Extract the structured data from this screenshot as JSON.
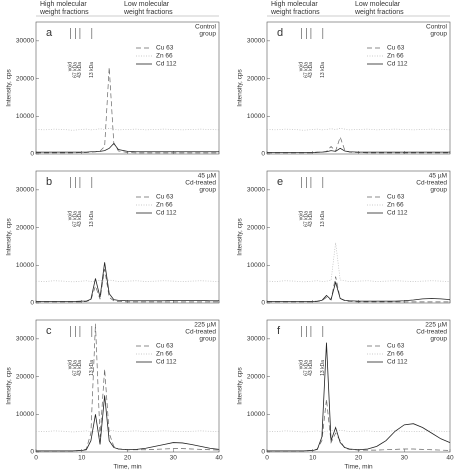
{
  "header": {
    "high": [
      "High molecular",
      "weight fractions"
    ],
    "low": [
      "Low molecular",
      "weight fractions"
    ]
  },
  "chart_data": [
    {
      "type": "line",
      "panel": "a",
      "annotation": [
        "Control",
        "group"
      ],
      "ylabel": "Intensity, cps",
      "x": [
        0,
        2,
        4,
        6,
        8,
        10,
        11,
        12,
        13,
        14,
        15,
        16,
        17,
        18,
        20,
        22,
        24,
        26,
        28,
        30,
        32,
        34,
        36,
        38,
        40
      ],
      "xlim": [
        0,
        40
      ],
      "ylim": [
        0,
        35000
      ],
      "xticks": [
        0,
        10,
        20,
        30,
        40
      ],
      "yticks": [
        0,
        10000,
        20000,
        30000
      ],
      "markers": [
        {
          "label": "void",
          "x": 7.5
        },
        {
          "label": "67 kDa",
          "x": 8.6
        },
        {
          "label": "43 kDa",
          "x": 9.6
        },
        {
          "label": "13 kDa",
          "x": 12.2
        }
      ],
      "series": [
        {
          "name": "Cu 63",
          "color": "#666666",
          "dash": "5,3",
          "values": [
            300,
            300,
            300,
            300,
            300,
            400,
            400,
            500,
            600,
            800,
            2000,
            23000,
            3000,
            800,
            400,
            300,
            300,
            300,
            300,
            300,
            300,
            300,
            300,
            300,
            300
          ]
        },
        {
          "name": "Zn 66",
          "color": "#bbbbbb",
          "dash": "1,1.5",
          "values": [
            6500,
            6400,
            6600,
            6500,
            6300,
            6500,
            6600,
            6400,
            6500,
            6700,
            6500,
            6800,
            6600,
            6400,
            6500,
            6600,
            6400,
            6500,
            6600,
            6500,
            6400,
            6500,
            6600,
            6500,
            6400
          ]
        },
        {
          "name": "Cd 112",
          "color": "#222222",
          "dash": "none",
          "values": [
            500,
            500,
            500,
            500,
            500,
            500,
            500,
            600,
            600,
            700,
            900,
            1500,
            2800,
            1200,
            700,
            600,
            600,
            600,
            600,
            600,
            600,
            600,
            600,
            600,
            600
          ]
        }
      ]
    },
    {
      "type": "line",
      "panel": "b",
      "annotation": [
        "45 µM",
        "Cd-treated",
        "group"
      ],
      "ylabel": "Intensity, cps",
      "x": [
        0,
        2,
        4,
        6,
        8,
        10,
        11,
        12,
        13,
        14,
        15,
        16,
        17,
        18,
        20,
        22,
        24,
        26,
        28,
        30,
        32,
        34,
        36,
        38,
        40
      ],
      "xlim": [
        0,
        40
      ],
      "ylim": [
        0,
        35000
      ],
      "xticks": [
        0,
        10,
        20,
        30,
        40
      ],
      "yticks": [
        0,
        10000,
        20000,
        30000
      ],
      "markers": [
        {
          "label": "void",
          "x": 7.5
        },
        {
          "label": "67 kDa",
          "x": 8.6
        },
        {
          "label": "43 kDa",
          "x": 9.6
        },
        {
          "label": "13 kDa",
          "x": 12.2
        }
      ],
      "series": [
        {
          "name": "Cu 63",
          "color": "#666666",
          "dash": "5,3",
          "values": [
            300,
            300,
            300,
            300,
            300,
            300,
            400,
            800,
            4500,
            1000,
            9000,
            1500,
            600,
            400,
            300,
            300,
            300,
            300,
            300,
            300,
            300,
            300,
            300,
            300,
            300
          ]
        },
        {
          "name": "Zn 66",
          "color": "#bbbbbb",
          "dash": "1,1.5",
          "values": [
            5800,
            5700,
            5900,
            5800,
            5600,
            5800,
            5900,
            5700,
            5800,
            6000,
            5800,
            6100,
            5900,
            5700,
            5800,
            5900,
            5700,
            5800,
            5900,
            5800,
            5700,
            5800,
            5900,
            5800,
            5700
          ]
        },
        {
          "name": "Cd 112",
          "color": "#222222",
          "dash": "none",
          "values": [
            400,
            400,
            400,
            400,
            400,
            500,
            500,
            1000,
            6500,
            1500,
            10800,
            2500,
            900,
            700,
            600,
            600,
            600,
            600,
            600,
            700,
            700,
            700,
            700,
            600,
            600
          ]
        }
      ]
    },
    {
      "type": "line",
      "panel": "c",
      "annotation": [
        "225 µM",
        "Cd-treated",
        "group"
      ],
      "ylabel": "Intensity, cps",
      "xlabel": "Time, min",
      "x": [
        0,
        2,
        4,
        6,
        8,
        10,
        11,
        12,
        13,
        14,
        15,
        16,
        17,
        18,
        20,
        22,
        24,
        26,
        28,
        30,
        32,
        34,
        36,
        38,
        40
      ],
      "xlim": [
        0,
        40
      ],
      "ylim": [
        0,
        35000
      ],
      "xticks": [
        0,
        10,
        20,
        30,
        40
      ],
      "yticks": [
        0,
        10000,
        20000,
        30000
      ],
      "markers": [
        {
          "label": "void",
          "x": 7.5
        },
        {
          "label": "67 kDa",
          "x": 8.6
        },
        {
          "label": "43 kDa",
          "x": 9.6
        },
        {
          "label": "13 kDa",
          "x": 12.2
        }
      ],
      "series": [
        {
          "name": "Cu 63",
          "color": "#666666",
          "dash": "5,3",
          "values": [
            300,
            300,
            300,
            300,
            300,
            400,
            800,
            5000,
            34000,
            4000,
            22000,
            5000,
            1500,
            800,
            600,
            600,
            600,
            700,
            800,
            900,
            900,
            800,
            700,
            600,
            500
          ]
        },
        {
          "name": "Zn 66",
          "color": "#bbbbbb",
          "dash": "1,1.5",
          "values": [
            5500,
            5400,
            5600,
            5500,
            5300,
            5500,
            5600,
            5400,
            5500,
            5700,
            5500,
            5800,
            5600,
            5400,
            5500,
            5600,
            5400,
            5500,
            5600,
            5500,
            5400,
            5500,
            5600,
            5500,
            5400
          ]
        },
        {
          "name": "Cd 112",
          "color": "#222222",
          "dash": "none",
          "values": [
            300,
            300,
            300,
            300,
            300,
            400,
            600,
            3000,
            10000,
            2000,
            15000,
            3000,
            1200,
            800,
            600,
            700,
            1000,
            1500,
            2000,
            2500,
            2400,
            2000,
            1500,
            1000,
            700
          ]
        }
      ]
    },
    {
      "type": "line",
      "panel": "d",
      "annotation": [
        "Control",
        "group"
      ],
      "ylabel": "Intensity, cps",
      "x": [
        0,
        2,
        4,
        6,
        8,
        10,
        11,
        12,
        13,
        14,
        15,
        16,
        17,
        18,
        20,
        22,
        24,
        26,
        28,
        30,
        32,
        34,
        36,
        38,
        40
      ],
      "xlim": [
        0,
        40
      ],
      "ylim": [
        0,
        35000
      ],
      "xticks": [
        0,
        10,
        20,
        30,
        40
      ],
      "yticks": [
        0,
        10000,
        20000,
        30000
      ],
      "markers": [
        {
          "label": "void",
          "x": 7.5
        },
        {
          "label": "67 kDa",
          "x": 8.6
        },
        {
          "label": "43 kDa",
          "x": 9.6
        },
        {
          "label": "13 kDa",
          "x": 12.2
        }
      ],
      "series": [
        {
          "name": "Cu 63",
          "color": "#666666",
          "dash": "5,3",
          "values": [
            300,
            300,
            300,
            300,
            300,
            300,
            400,
            500,
            700,
            2000,
            800,
            4500,
            1000,
            500,
            400,
            300,
            300,
            300,
            300,
            300,
            300,
            300,
            300,
            300,
            300
          ]
        },
        {
          "name": "Zn 66",
          "color": "#bbbbbb",
          "dash": "1,1.5",
          "values": [
            6500,
            6400,
            6600,
            6500,
            6300,
            6500,
            6600,
            6400,
            6500,
            6700,
            6500,
            6800,
            6600,
            6400,
            6500,
            6600,
            6400,
            6500,
            6600,
            6500,
            6400,
            6500,
            6600,
            6500,
            6400
          ]
        },
        {
          "name": "Cd 112",
          "color": "#222222",
          "dash": "none",
          "values": [
            400,
            400,
            400,
            400,
            400,
            400,
            500,
            500,
            600,
            900,
            700,
            1500,
            800,
            600,
            500,
            500,
            500,
            500,
            500,
            500,
            500,
            500,
            500,
            500,
            500
          ]
        }
      ]
    },
    {
      "type": "line",
      "panel": "e",
      "annotation": [
        "45 µM",
        "Cd-treated",
        "group"
      ],
      "ylabel": "Intensity, cps",
      "x": [
        0,
        2,
        4,
        6,
        8,
        10,
        11,
        12,
        13,
        14,
        15,
        16,
        17,
        18,
        20,
        22,
        24,
        26,
        28,
        30,
        32,
        34,
        36,
        38,
        40
      ],
      "xlim": [
        0,
        40
      ],
      "ylim": [
        0,
        35000
      ],
      "xticks": [
        0,
        10,
        20,
        30,
        40
      ],
      "yticks": [
        0,
        10000,
        20000,
        30000
      ],
      "markers": [
        {
          "label": "void",
          "x": 7.5
        },
        {
          "label": "67 kDa",
          "x": 8.6
        },
        {
          "label": "43 kDa",
          "x": 9.6
        },
        {
          "label": "13 kDa",
          "x": 12.2
        }
      ],
      "series": [
        {
          "name": "Cu 63",
          "color": "#666666",
          "dash": "5,3",
          "values": [
            300,
            300,
            300,
            300,
            300,
            300,
            400,
            600,
            1500,
            800,
            7000,
            1200,
            600,
            400,
            300,
            300,
            300,
            300,
            300,
            300,
            300,
            300,
            300,
            300,
            300
          ]
        },
        {
          "name": "Zn 66",
          "color": "#bbbbbb",
          "dash": "1,1.5",
          "values": [
            5800,
            5700,
            5900,
            5800,
            5600,
            5800,
            5900,
            5700,
            5800,
            6000,
            16000,
            6100,
            5900,
            5700,
            5800,
            5900,
            5700,
            5800,
            5900,
            5800,
            5700,
            5800,
            5900,
            5800,
            5700
          ]
        },
        {
          "name": "Cd 112",
          "color": "#222222",
          "dash": "none",
          "values": [
            400,
            400,
            400,
            400,
            400,
            400,
            500,
            700,
            2000,
            900,
            5500,
            1200,
            700,
            600,
            500,
            500,
            500,
            500,
            500,
            600,
            800,
            1100,
            1200,
            1100,
            900
          ]
        }
      ]
    },
    {
      "type": "line",
      "panel": "f",
      "annotation": [
        "225 µM",
        "Cd-treated",
        "group"
      ],
      "ylabel": "Intensity, cps",
      "xlabel": "Time, min",
      "x": [
        0,
        2,
        4,
        6,
        8,
        10,
        11,
        12,
        13,
        14,
        15,
        16,
        17,
        18,
        20,
        22,
        24,
        26,
        28,
        30,
        32,
        34,
        36,
        38,
        40
      ],
      "xlim": [
        0,
        40
      ],
      "ylim": [
        0,
        35000
      ],
      "xticks": [
        0,
        10,
        20,
        30,
        40
      ],
      "yticks": [
        0,
        10000,
        20000,
        30000
      ],
      "markers": [
        {
          "label": "void",
          "x": 7.5
        },
        {
          "label": "67 kDa",
          "x": 8.6
        },
        {
          "label": "43 kDa",
          "x": 9.6
        },
        {
          "label": "13 kDa",
          "x": 12.2
        }
      ],
      "series": [
        {
          "name": "Cu 63",
          "color": "#666666",
          "dash": "5,3",
          "values": [
            300,
            300,
            300,
            300,
            300,
            400,
            800,
            3000,
            14000,
            2500,
            5000,
            3000,
            1000,
            700,
            500,
            500,
            500,
            600,
            700,
            800,
            800,
            700,
            600,
            500,
            400
          ]
        },
        {
          "name": "Zn 66",
          "color": "#bbbbbb",
          "dash": "1,1.5",
          "values": [
            5500,
            5400,
            5600,
            5500,
            5300,
            5500,
            5600,
            5400,
            5500,
            5700,
            5500,
            5800,
            5600,
            5400,
            5500,
            5600,
            5400,
            5500,
            5600,
            5500,
            5400,
            5500,
            5600,
            5500,
            5400
          ]
        },
        {
          "name": "Cd 112",
          "color": "#222222",
          "dash": "none",
          "values": [
            300,
            300,
            300,
            300,
            300,
            400,
            700,
            4000,
            29000,
            3000,
            6500,
            2500,
            1200,
            800,
            600,
            800,
            1500,
            3000,
            5500,
            7200,
            7500,
            6500,
            5000,
            3500,
            2500
          ]
        }
      ]
    }
  ]
}
